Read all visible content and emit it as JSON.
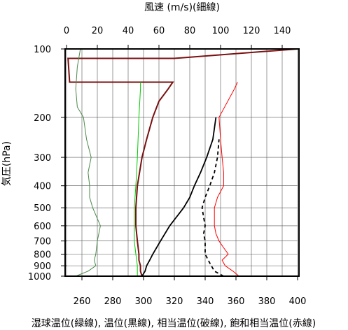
{
  "chart_data": {
    "type": "line",
    "top_axis": {
      "title": "風速 (m/s)(細線)",
      "ticks": [
        0,
        20,
        40,
        60,
        80,
        100,
        120,
        140
      ],
      "range": [
        0,
        150
      ]
    },
    "bottom_axis": {
      "title": "湿球温位(緑線), 温位(黒線), 相当温位(破線), 飽和相当温位(赤線)",
      "ticks": [
        260,
        280,
        300,
        320,
        340,
        360,
        380,
        400
      ],
      "range": [
        250,
        400
      ]
    },
    "left_axis": {
      "title": "気圧(hPa)",
      "ticks": [
        100,
        200,
        300,
        400,
        500,
        600,
        700,
        800,
        900,
        1000
      ],
      "range": [
        100,
        1000
      ],
      "scale": "log"
    },
    "grid": true,
    "series": [
      {
        "key": "wind_speed",
        "color": "#7a1010",
        "axis": "top",
        "style": "solid",
        "p": [
          1000,
          950,
          900,
          850,
          800,
          700,
          600,
          500,
          400,
          300,
          250,
          200,
          170,
          150,
          140,
          140,
          110,
          110,
          100,
          100
        ],
        "x": [
          49,
          48,
          48,
          47,
          47,
          46,
          45,
          45,
          46,
          49,
          52,
          56,
          60,
          66,
          69,
          2,
          1,
          70,
          150,
          150
        ]
      },
      {
        "key": "wet_bulb_potential_temperature",
        "color": "#4a8a4a",
        "axis": "bottom",
        "style": "solid",
        "p": [
          1000,
          950,
          900,
          850,
          800,
          700,
          600,
          500,
          450,
          400,
          350,
          300,
          250,
          200,
          180,
          150,
          120,
          100
        ],
        "x": [
          256,
          264,
          269,
          268,
          269,
          270,
          272,
          267,
          265,
          265,
          264,
          266,
          263,
          261,
          257,
          256,
          257,
          259
        ]
      },
      {
        "key": "potential_temperature",
        "color": "#00cc00",
        "axis": "bottom",
        "style": "solid",
        "p": [
          1000,
          900,
          800,
          700,
          600,
          500,
          400,
          300,
          200,
          150,
          140
        ],
        "x": [
          296,
          296,
          295,
          294,
          294,
          294,
          295,
          296,
          297,
          298,
          298
        ]
      },
      {
        "key": "equivalent_potential_temperature",
        "color": "#000000",
        "axis": "bottom",
        "style": "solid",
        "p": [
          1000,
          950,
          900,
          850,
          800,
          700,
          600,
          500,
          450,
          400,
          350,
          300,
          250,
          200
        ],
        "x": [
          299,
          301,
          302,
          304,
          306,
          311,
          317,
          326,
          330,
          333,
          337,
          341,
          345,
          347
        ]
      },
      {
        "key": "saturated_equivalent_potential_temperature",
        "color": "#000000",
        "axis": "bottom",
        "style": "dashed",
        "p": [
          1000,
          950,
          900,
          850,
          800,
          750,
          700,
          650,
          600,
          550,
          500,
          450,
          400,
          350,
          300,
          250
        ],
        "x": [
          352,
          346,
          344,
          342,
          340,
          340,
          340,
          339,
          340,
          339,
          338,
          340,
          343,
          346,
          348,
          349
        ]
      },
      {
        "key": "saturated_equivalent_potential_temperature_red",
        "color": "#ff0000",
        "axis": "bottom",
        "style": "solid",
        "p": [
          1000,
          950,
          900,
          850,
          800,
          750,
          700,
          650,
          600,
          550,
          500,
          450,
          400,
          350,
          300,
          250,
          200,
          150,
          140
        ],
        "x": [
          362,
          358,
          353,
          351,
          355,
          352,
          349,
          347,
          346,
          346,
          346,
          348,
          352,
          352,
          351,
          350,
          349,
          359,
          361
        ]
      }
    ]
  }
}
